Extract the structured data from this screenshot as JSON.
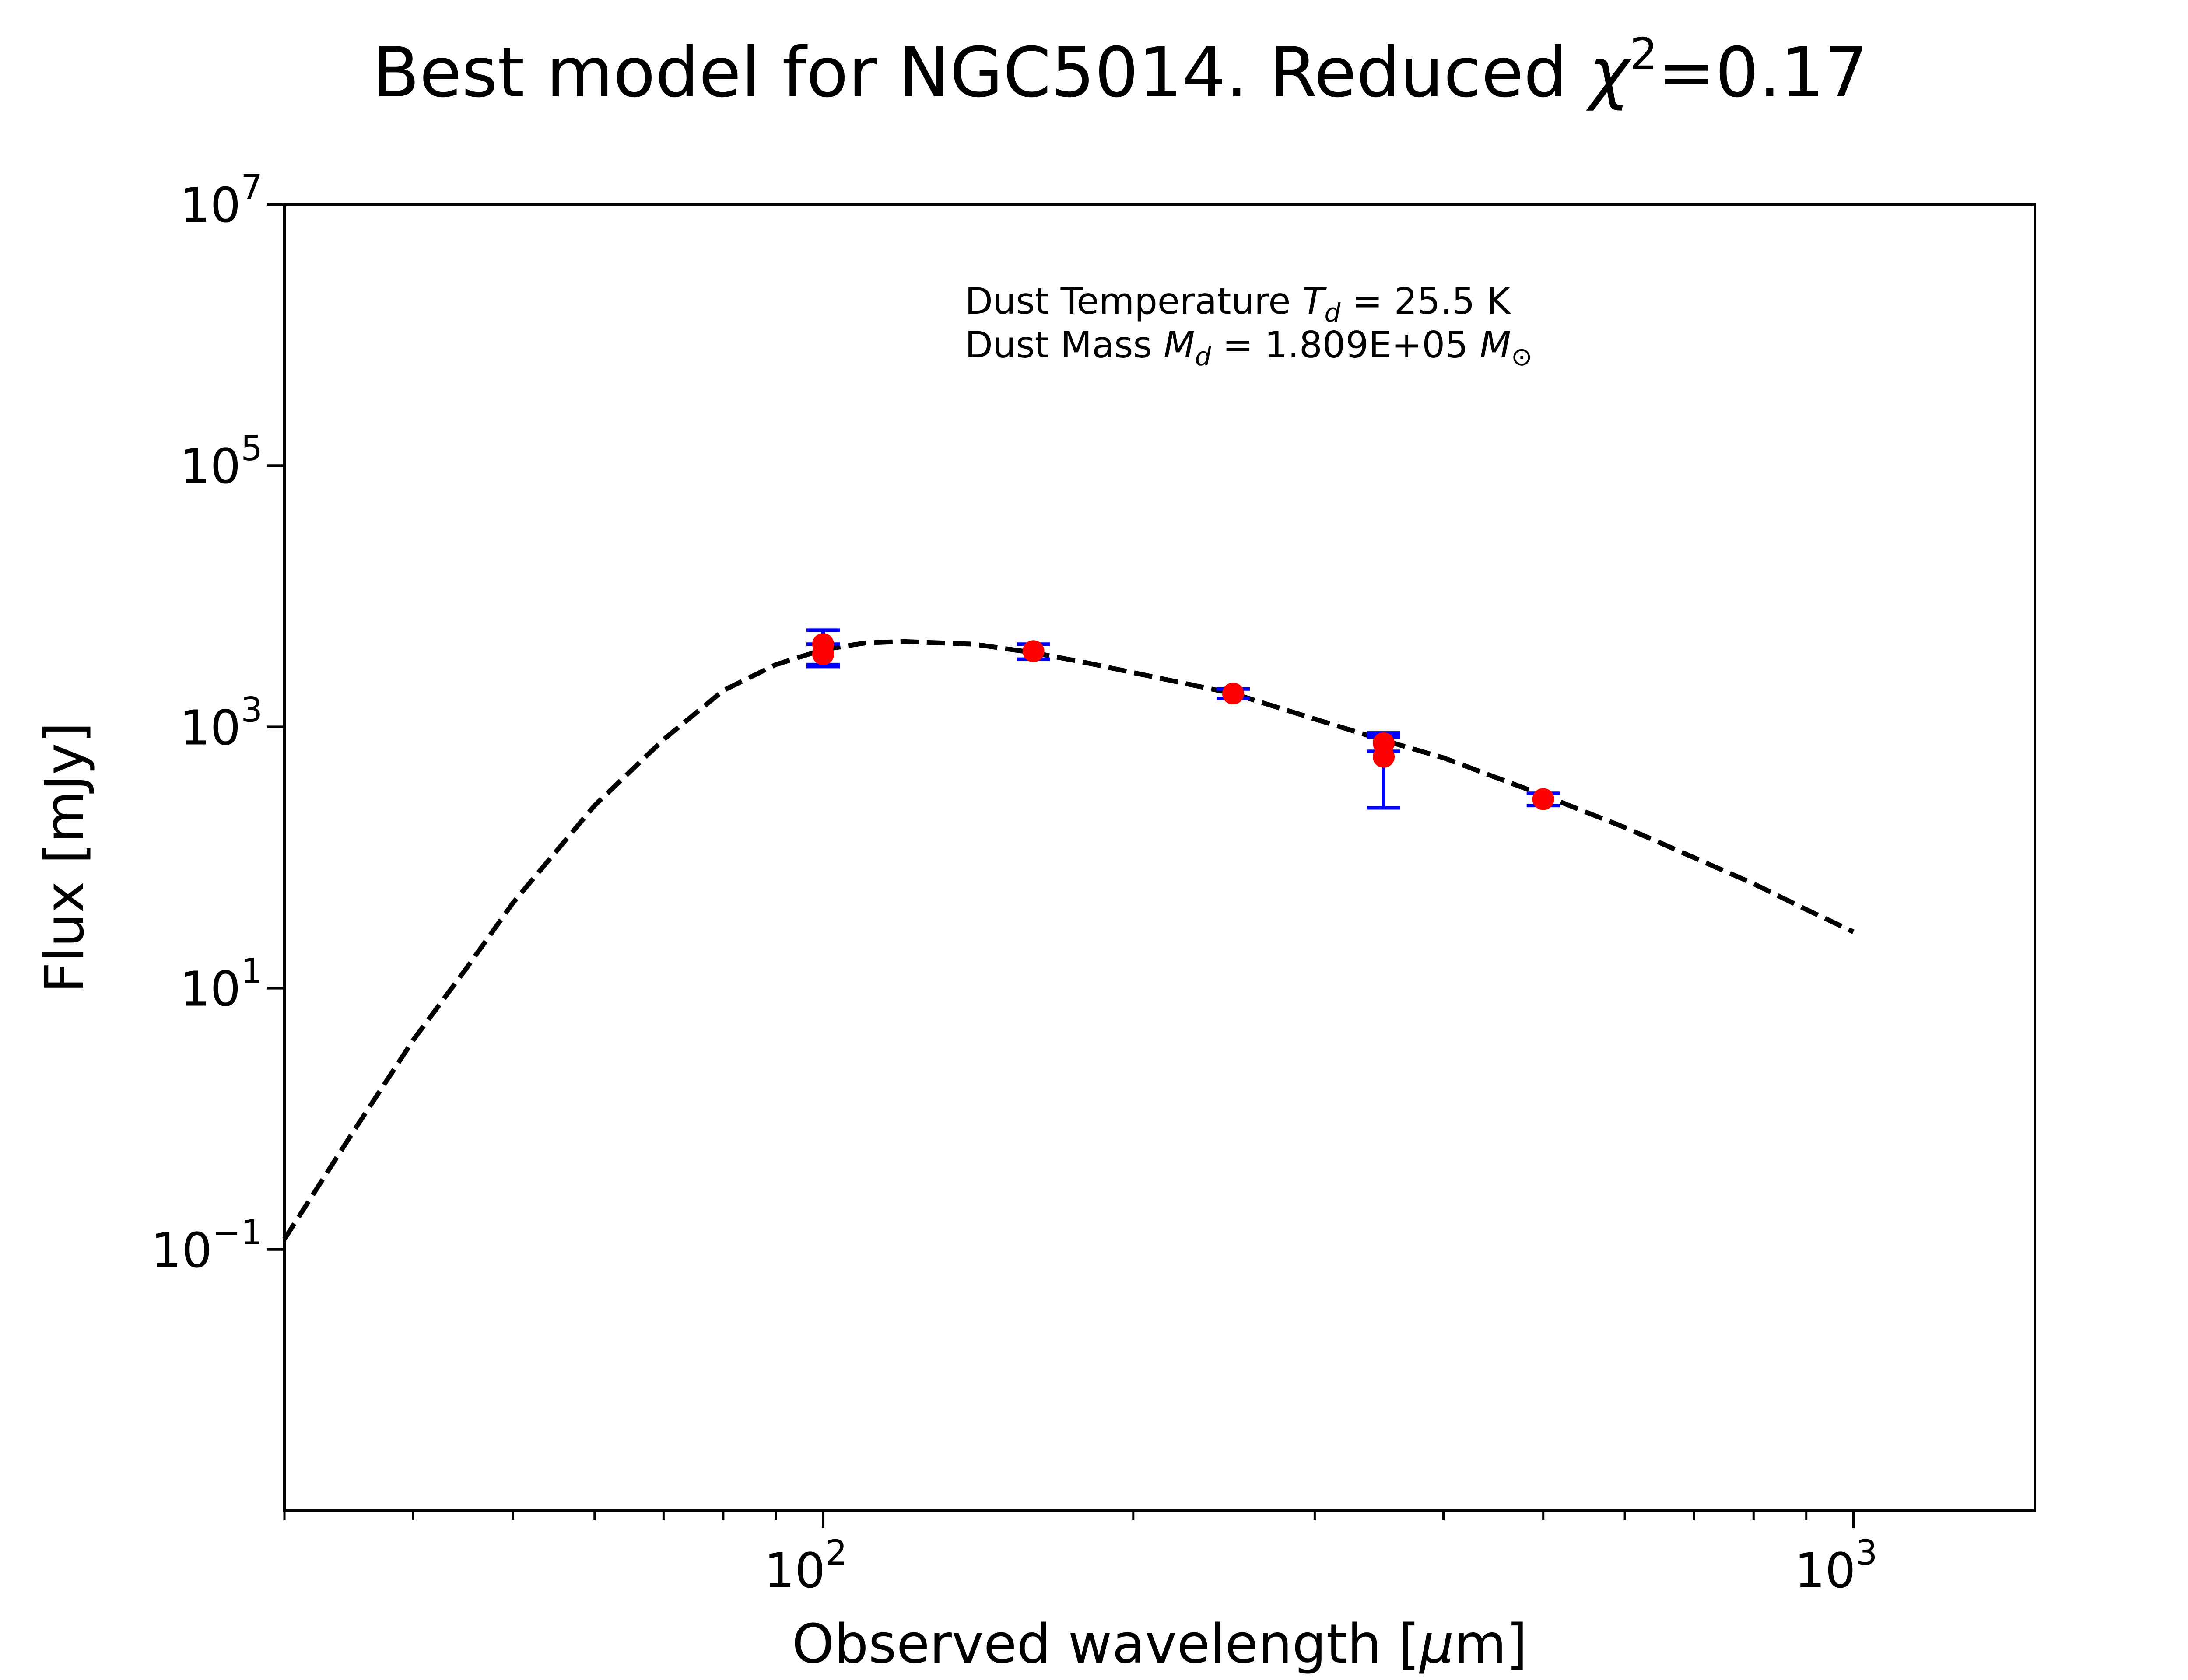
{
  "chart_data": {
    "type": "scatter",
    "title": {
      "main": "Best model for NGC5014. Reduced ",
      "chi": "χ",
      "chi_exp": "2",
      "value": "=0.17"
    },
    "xlabel": {
      "main": "Observed wavelength [",
      "mu": "μ",
      "unit": "m]"
    },
    "ylabel": "Flux [mJy]",
    "xscale": "log",
    "yscale": "log",
    "xlim": [
      30,
      1500
    ],
    "ylim": [
      0.001,
      10000000
    ],
    "grid": false,
    "x_ticks": [
      {
        "value": 100,
        "base": "10",
        "exp": "2"
      },
      {
        "value": 1000,
        "base": "10",
        "exp": "3"
      }
    ],
    "y_ticks": [
      {
        "value": 0.1,
        "base": "10",
        "exp": "−1"
      },
      {
        "value": 10,
        "base": "10",
        "exp": "1"
      },
      {
        "value": 1000,
        "base": "10",
        "exp": "3"
      },
      {
        "value": 100000,
        "base": "10",
        "exp": "5"
      },
      {
        "value": 10000000,
        "base": "10",
        "exp": "7"
      }
    ],
    "annotation": {
      "line1_prefix": "Dust Temperature ",
      "line1_sym": "T",
      "line1_sub": "d",
      "line1_value": " = 25.5 K",
      "line2_prefix": "Dust Mass ",
      "line2_sym": "M",
      "line2_sub": "d",
      "line2_value": " = 1.809E+05 ",
      "line2_unit": "M",
      "line2_unit_sub": "⊙"
    },
    "model_curve": {
      "style": "dashed",
      "color": "#000000",
      "x": [
        30,
        35,
        40,
        45,
        50,
        60,
        70,
        80,
        90,
        100,
        110,
        120,
        140,
        160,
        180,
        200,
        250,
        300,
        350,
        400,
        500,
        600,
        700,
        800,
        900,
        1000
      ],
      "y": [
        0.12,
        0.8,
        4.0,
        14,
        45,
        250,
        800,
        1900,
        3000,
        3900,
        4400,
        4500,
        4300,
        3700,
        3100,
        2600,
        1800,
        1150,
        790,
        580,
        300,
        170,
        100,
        63,
        40,
        27
      ]
    },
    "observations": {
      "marker_color": "#ff0000",
      "errorbar_color": "#0000ff",
      "points": [
        {
          "x": 100,
          "y": 4300,
          "yerr_low": 1300,
          "yerr_high": 1200
        },
        {
          "x": 100,
          "y": 3600,
          "yerr_low": 700,
          "yerr_high": 700
        },
        {
          "x": 160,
          "y": 3800,
          "yerr_low": 500,
          "yerr_high": 500
        },
        {
          "x": 250,
          "y": 1800,
          "yerr_low": 150,
          "yerr_high": 150
        },
        {
          "x": 350,
          "y": 750,
          "yerr_low": 100,
          "yerr_high": 150
        },
        {
          "x": 350,
          "y": 590,
          "yerr_low": 350,
          "yerr_high": 250
        },
        {
          "x": 500,
          "y": 280,
          "yerr_low": 30,
          "yerr_high": 30
        }
      ]
    }
  }
}
